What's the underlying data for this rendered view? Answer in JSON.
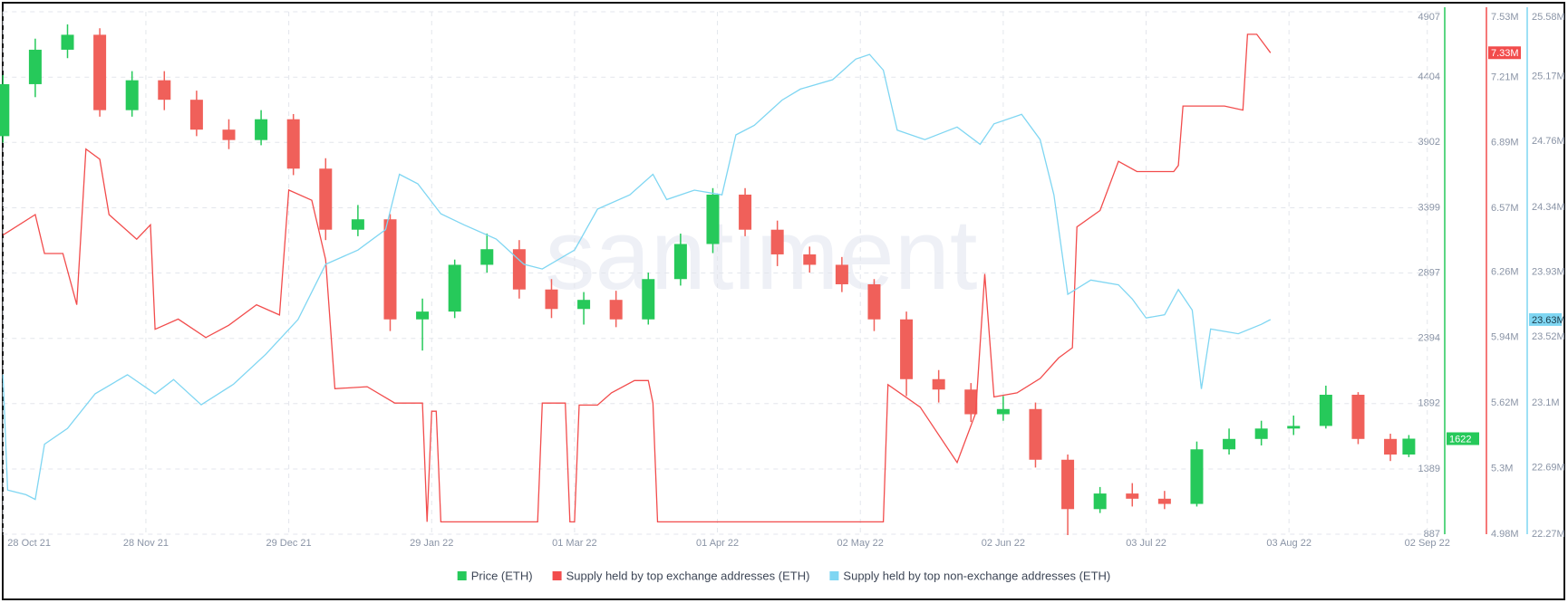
{
  "chart_data": {
    "type": "candlestick",
    "watermark": "santiment",
    "xlim": [
      "2021-10-28",
      "2022-09-05"
    ],
    "xticks": [
      {
        "value": "2021-10-28",
        "label": "28 Oct 21"
      },
      {
        "value": "2021-11-28",
        "label": "28 Nov 21"
      },
      {
        "value": "2021-12-29",
        "label": "29 Dec 21"
      },
      {
        "value": "2022-01-29",
        "label": "29 Jan 22"
      },
      {
        "value": "2022-03-01",
        "label": "01 Mar 22"
      },
      {
        "value": "2022-04-01",
        "label": "01 Apr 22"
      },
      {
        "value": "2022-05-02",
        "label": "02 May 22"
      },
      {
        "value": "2022-06-02",
        "label": "02 Jun 22"
      },
      {
        "value": "2022-07-03",
        "label": "03 Jul 22"
      },
      {
        "value": "2022-08-03",
        "label": "03 Aug 22"
      },
      {
        "value": "2022-09-02",
        "label": "02 Sep 22"
      }
    ],
    "ylim": [
      887,
      4907
    ],
    "yticks": [
      4907,
      4404,
      3902,
      3399,
      2897,
      2394,
      1892,
      1389,
      887
    ],
    "y2lim": [
      4980000,
      7530000
    ],
    "y2ticks": [
      {
        "value": 7530000,
        "label": "7.53M"
      },
      {
        "value": 7210000,
        "label": "7.21M"
      },
      {
        "value": 6890000,
        "label": "6.89M"
      },
      {
        "value": 6570000,
        "label": "6.57M"
      },
      {
        "value": 6260000,
        "label": "6.26M"
      },
      {
        "value": 5940000,
        "label": "5.94M"
      },
      {
        "value": 5620000,
        "label": "5.62M"
      },
      {
        "value": 5300000,
        "label": "5.3M"
      },
      {
        "value": 4980000,
        "label": "4.98M"
      }
    ],
    "y3lim": [
      22270000,
      25580000
    ],
    "y3ticks": [
      {
        "value": 25580000,
        "label": "25.58M"
      },
      {
        "value": 25170000,
        "label": "25.17M"
      },
      {
        "value": 24760000,
        "label": "24.76M"
      },
      {
        "value": 24340000,
        "label": "24.34M"
      },
      {
        "value": 23930000,
        "label": "23.93M"
      },
      {
        "value": 23520000,
        "label": "23.52M"
      },
      {
        "value": 23100000,
        "label": "23.1M"
      },
      {
        "value": 22690000,
        "label": "22.69M"
      },
      {
        "value": 22270000,
        "label": "22.27M"
      }
    ],
    "grid": true,
    "series": [
      {
        "name": "Price (ETH)",
        "type": "candlestick",
        "axis": "y",
        "color": "#26c95a",
        "down_color": "#f0605a",
        "x": [
          "2021-10-28",
          "2021-11-04",
          "2021-11-11",
          "2021-11-18",
          "2021-11-25",
          "2021-12-02",
          "2021-12-09",
          "2021-12-16",
          "2021-12-23",
          "2021-12-30",
          "2022-01-06",
          "2022-01-13",
          "2022-01-20",
          "2022-01-27",
          "2022-02-03",
          "2022-02-10",
          "2022-02-17",
          "2022-02-24",
          "2022-03-03",
          "2022-03-10",
          "2022-03-17",
          "2022-03-24",
          "2022-03-31",
          "2022-04-07",
          "2022-04-14",
          "2022-04-21",
          "2022-04-28",
          "2022-05-05",
          "2022-05-12",
          "2022-05-19",
          "2022-05-26",
          "2022-06-02",
          "2022-06-09",
          "2022-06-16",
          "2022-06-23",
          "2022-06-30",
          "2022-07-07",
          "2022-07-14",
          "2022-07-21",
          "2022-07-28",
          "2022-08-04",
          "2022-08-11",
          "2022-08-18",
          "2022-08-25",
          "2022-08-29"
        ],
        "open": [
          3950,
          4350,
          4615,
          4730,
          4150,
          4380,
          4230,
          4000,
          3920,
          4080,
          3700,
          3230,
          3310,
          2540,
          2600,
          2960,
          3080,
          2770,
          2620,
          2690,
          2540,
          2850,
          3120,
          3500,
          3230,
          3040,
          2960,
          2810,
          2540,
          2080,
          2000,
          1810,
          1850,
          1460,
          1080,
          1200,
          1160,
          1120,
          1540,
          1620,
          1700,
          1720,
          1960,
          1620,
          1500
        ],
        "high": [
          4420,
          4700,
          4810,
          4780,
          4450,
          4450,
          4300,
          4080,
          4150,
          4120,
          3780,
          3420,
          3350,
          2700,
          3000,
          3200,
          3150,
          2850,
          2750,
          2760,
          2900,
          3200,
          3550,
          3550,
          3300,
          3100,
          3020,
          2850,
          2600,
          2150,
          2050,
          1950,
          1900,
          1500,
          1250,
          1280,
          1220,
          1600,
          1700,
          1760,
          1800,
          2030,
          1980,
          1660,
          1650
        ],
        "low": [
          3900,
          4250,
          4550,
          4100,
          4100,
          4150,
          3950,
          3850,
          3880,
          3650,
          3150,
          3180,
          2450,
          2300,
          2550,
          2900,
          2700,
          2550,
          2500,
          2480,
          2500,
          2800,
          3050,
          3180,
          2950,
          2900,
          2750,
          2450,
          1950,
          1900,
          1750,
          1760,
          1400,
          880,
          1050,
          1100,
          1080,
          1100,
          1500,
          1570,
          1650,
          1700,
          1580,
          1450,
          1480
        ],
        "close": [
          4350,
          4615,
          4730,
          4150,
          4380,
          4230,
          4000,
          3920,
          4080,
          3700,
          3230,
          3310,
          2540,
          2600,
          2960,
          3080,
          2770,
          2620,
          2690,
          2540,
          2850,
          3120,
          3500,
          3230,
          3040,
          2960,
          2810,
          2540,
          2080,
          2000,
          1810,
          1850,
          1460,
          1080,
          1200,
          1160,
          1120,
          1540,
          1620,
          1700,
          1720,
          1960,
          1620,
          1500,
          1622
        ],
        "last_value": 1622
      },
      {
        "name": "Supply held by top exchange addresses (ETH)",
        "type": "line",
        "axis": "y2",
        "color": "#f24c4c",
        "x": [
          "2021-10-28",
          "2021-11-04",
          "2021-11-06",
          "2021-11-10",
          "2021-11-13",
          "2021-11-15",
          "2021-11-18",
          "2021-11-20",
          "2021-11-26",
          "2021-11-29",
          "2021-11-30",
          "2021-12-05",
          "2021-12-11",
          "2021-12-16",
          "2021-12-22",
          "2021-12-27",
          "2021-12-29",
          "2022-01-03",
          "2022-01-06",
          "2022-01-08",
          "2022-01-15",
          "2022-01-21",
          "2022-01-27",
          "2022-01-28",
          "2022-01-29",
          "2022-01-30",
          "2022-01-31",
          "2022-02-21",
          "2022-02-22",
          "2022-02-27",
          "2022-02-28",
          "2022-03-01",
          "2022-03-02",
          "2022-03-06",
          "2022-03-09",
          "2022-03-14",
          "2022-03-17",
          "2022-03-18",
          "2022-03-19",
          "2022-05-07",
          "2022-05-08",
          "2022-05-15",
          "2022-05-23",
          "2022-05-27",
          "2022-05-29",
          "2022-05-31",
          "2022-06-05",
          "2022-06-10",
          "2022-06-14",
          "2022-06-17",
          "2022-06-18",
          "2022-06-23",
          "2022-06-27",
          "2022-07-01",
          "2022-07-09",
          "2022-07-10",
          "2022-07-11",
          "2022-07-20",
          "2022-07-24",
          "2022-07-25",
          "2022-07-27",
          "2022-07-30"
        ],
        "values": [
          6440000,
          6540000,
          6350000,
          6350000,
          6100000,
          6860000,
          6810000,
          6540000,
          6420000,
          6490000,
          5980000,
          6030000,
          5940000,
          6000000,
          6100000,
          6050000,
          6660000,
          6610000,
          6320000,
          5690000,
          5700000,
          5620000,
          5620000,
          5040000,
          5580000,
          5580000,
          5040000,
          5040000,
          5620000,
          5620000,
          5040000,
          5040000,
          5610000,
          5610000,
          5670000,
          5730000,
          5730000,
          5620000,
          5040000,
          5040000,
          5710000,
          5600000,
          5330000,
          5570000,
          6250000,
          5650000,
          5670000,
          5740000,
          5840000,
          5890000,
          6480000,
          6560000,
          6800000,
          6750000,
          6750000,
          6780000,
          7070000,
          7070000,
          7050000,
          7420000,
          7420000,
          7330000
        ],
        "last_value": {
          "value": 7330000,
          "label": "7.33M"
        }
      },
      {
        "name": "Supply held by top non-exchange addresses (ETH)",
        "type": "line",
        "axis": "y3",
        "color": "#7fd6f2",
        "x": [
          "2021-10-28",
          "2021-10-29",
          "2021-11-02",
          "2021-11-04",
          "2021-11-06",
          "2021-11-11",
          "2021-11-17",
          "2021-11-24",
          "2021-11-30",
          "2021-12-04",
          "2021-12-10",
          "2021-12-17",
          "2021-12-24",
          "2021-12-31",
          "2022-01-06",
          "2022-01-13",
          "2022-01-19",
          "2022-01-22",
          "2022-01-26",
          "2022-01-31",
          "2022-02-05",
          "2022-02-12",
          "2022-02-18",
          "2022-02-22",
          "2022-03-01",
          "2022-03-06",
          "2022-03-13",
          "2022-03-18",
          "2022-03-21",
          "2022-03-27",
          "2022-04-02",
          "2022-04-05",
          "2022-04-09",
          "2022-04-15",
          "2022-04-19",
          "2022-04-26",
          "2022-05-01",
          "2022-05-04",
          "2022-05-07",
          "2022-05-10",
          "2022-05-16",
          "2022-05-23",
          "2022-05-28",
          "2022-05-31",
          "2022-06-06",
          "2022-06-10",
          "2022-06-13",
          "2022-06-16",
          "2022-06-21",
          "2022-06-27",
          "2022-06-30",
          "2022-07-03",
          "2022-07-07",
          "2022-07-10",
          "2022-07-13",
          "2022-07-15",
          "2022-07-17",
          "2022-07-23",
          "2022-07-28",
          "2022-07-30"
        ],
        "values": [
          23280000,
          22550000,
          22520000,
          22490000,
          22840000,
          22940000,
          23160000,
          23280000,
          23160000,
          23250000,
          23090000,
          23220000,
          23410000,
          23630000,
          23980000,
          24070000,
          24200000,
          24550000,
          24490000,
          24300000,
          24230000,
          24140000,
          23980000,
          23950000,
          24070000,
          24330000,
          24420000,
          24550000,
          24390000,
          24450000,
          24420000,
          24800000,
          24860000,
          25020000,
          25090000,
          25150000,
          25280000,
          25310000,
          25210000,
          24830000,
          24770000,
          24850000,
          24740000,
          24870000,
          24930000,
          24770000,
          24420000,
          23790000,
          23880000,
          23850000,
          23760000,
          23640000,
          23660000,
          23820000,
          23690000,
          23190000,
          23570000,
          23540000,
          23600000,
          23630000
        ],
        "last_value": {
          "value": 23630000,
          "label": "23.63M"
        }
      }
    ]
  }
}
